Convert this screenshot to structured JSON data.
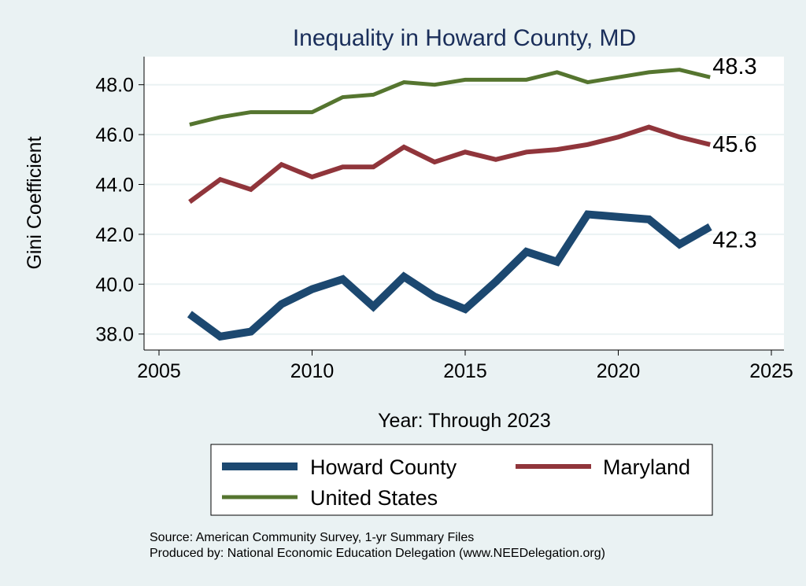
{
  "chart_data": {
    "type": "line",
    "title": "Inequality in Howard County, MD",
    "xlabel": "Year: Through 2023",
    "ylabel": "Gini Coefficient",
    "xlim": [
      2004.5,
      2025.5
    ],
    "ylim": [
      37.5,
      49.1
    ],
    "xticks": [
      2005,
      2010,
      2015,
      2020,
      2025
    ],
    "yticks": [
      38,
      40,
      42,
      44,
      46,
      48
    ],
    "ytick_labels": [
      "38.0",
      "40.0",
      "42.0",
      "44.0",
      "46.0",
      "48.0"
    ],
    "grid": true,
    "legend_placement": "bottom",
    "x": [
      2006,
      2007,
      2008,
      2009,
      2010,
      2011,
      2012,
      2013,
      2014,
      2015,
      2016,
      2017,
      2018,
      2019,
      2020,
      2021,
      2022,
      2023
    ],
    "series": [
      {
        "name": "Howard County",
        "color": "#1c4870",
        "end_label": "42.3",
        "values": [
          38.8,
          37.9,
          38.1,
          39.2,
          39.8,
          40.2,
          39.1,
          40.3,
          39.5,
          39.0,
          40.1,
          41.3,
          40.9,
          42.8,
          42.7,
          42.6,
          41.6,
          42.3
        ]
      },
      {
        "name": "Maryland",
        "color": "#90353b",
        "end_label": "45.6",
        "values": [
          43.3,
          44.2,
          43.8,
          44.8,
          44.3,
          44.7,
          44.7,
          45.5,
          44.9,
          45.3,
          45.0,
          45.3,
          45.4,
          45.6,
          45.9,
          46.3,
          45.9,
          45.6
        ]
      },
      {
        "name": "United States",
        "color": "#55752f",
        "end_label": "48.3",
        "values": [
          46.4,
          46.7,
          46.9,
          46.9,
          46.9,
          47.5,
          47.6,
          48.1,
          48.0,
          48.2,
          48.2,
          48.2,
          48.5,
          48.1,
          48.3,
          48.5,
          48.6,
          48.3
        ]
      }
    ]
  },
  "notes": {
    "source": "Source: American Community Survey, 1-yr Summary Files",
    "produced_by": "Produced by: National Economic Education Delegation (www.NEEDelegation.org)"
  }
}
